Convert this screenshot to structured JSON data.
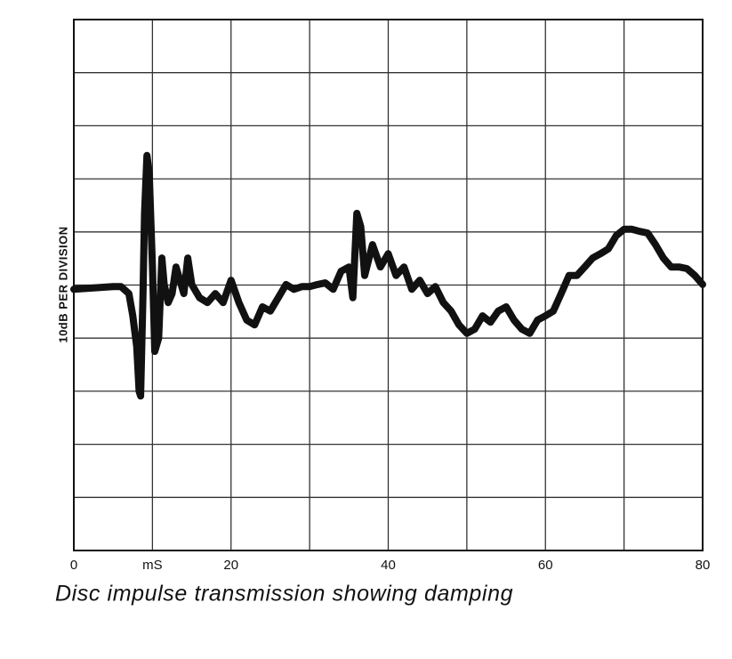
{
  "chart_data": {
    "type": "line",
    "title": "Disc impulse transmission showing damping",
    "y_label": "10dB PER DIVISION",
    "xlim": [
      0,
      80
    ],
    "xticks": [
      0,
      {
        "value": 10,
        "label": "mS"
      },
      20,
      40,
      60,
      80
    ],
    "xgrid": [
      0,
      10,
      20,
      30,
      40,
      50,
      60,
      70,
      80
    ],
    "ylim": [
      0,
      10
    ],
    "ygrid": [
      0,
      1,
      2,
      3,
      4,
      5,
      6,
      7,
      8,
      9,
      10
    ],
    "grid": true,
    "color": "#111111",
    "x": [
      0,
      5,
      6,
      7,
      7.5,
      8,
      8.3,
      8.5,
      8.8,
      9,
      9.3,
      9.6,
      10,
      10.3,
      10.8,
      11.2,
      11.5,
      12,
      12.5,
      13,
      14,
      14.5,
      15,
      16,
      17,
      18,
      19,
      20,
      21,
      22,
      23,
      24,
      25,
      26,
      27,
      28,
      29,
      30,
      31,
      32,
      33,
      34,
      35,
      35.5,
      36,
      36.5,
      37,
      38,
      39,
      40,
      41,
      42,
      43,
      44,
      45,
      46,
      47,
      48,
      49,
      50,
      51,
      52,
      53,
      54,
      55,
      56,
      57,
      58,
      59,
      60,
      61,
      62,
      63,
      64,
      65,
      66,
      67,
      68,
      69,
      70,
      71,
      72,
      73,
      74,
      75,
      76,
      77,
      78,
      79,
      80
    ],
    "values": [
      4.92,
      4.97,
      4.97,
      4.84,
      4.42,
      3.84,
      3.0,
      2.91,
      4.84,
      6.35,
      7.44,
      7.1,
      5.34,
      3.75,
      4.0,
      5.51,
      5.01,
      4.67,
      4.84,
      5.34,
      4.84,
      5.51,
      5.01,
      4.76,
      4.67,
      4.84,
      4.67,
      5.09,
      4.67,
      4.34,
      4.25,
      4.59,
      4.51,
      4.76,
      5.01,
      4.92,
      4.97,
      4.97,
      5.01,
      5.04,
      4.92,
      5.26,
      5.34,
      4.76,
      6.35,
      6.1,
      5.18,
      5.76,
      5.34,
      5.59,
      5.18,
      5.34,
      4.92,
      5.09,
      4.84,
      4.97,
      4.67,
      4.51,
      4.25,
      4.09,
      4.17,
      4.42,
      4.3,
      4.51,
      4.59,
      4.34,
      4.17,
      4.09,
      4.34,
      4.42,
      4.51,
      4.84,
      5.18,
      5.18,
      5.34,
      5.51,
      5.59,
      5.68,
      5.93,
      6.05,
      6.05,
      6.01,
      5.98,
      5.76,
      5.51,
      5.34,
      5.34,
      5.31,
      5.18,
      5.01
    ]
  }
}
